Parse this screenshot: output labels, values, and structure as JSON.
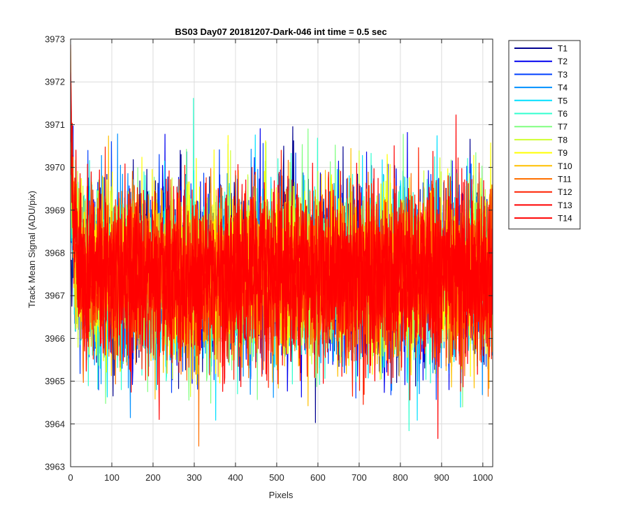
{
  "chart_data": {
    "type": "line",
    "title": "BS03 Day07 20181207-Dark-046 int time = 0.5 sec",
    "xlabel": "Pixels",
    "ylabel": "Track Mean Signal (ADU/pix)",
    "xlim": [
      0,
      1024
    ],
    "ylim": [
      3963,
      3973
    ],
    "xticks": [
      0,
      100,
      200,
      300,
      400,
      500,
      600,
      700,
      800,
      900,
      1000
    ],
    "yticks": [
      3963,
      3964,
      3965,
      3966,
      3967,
      3968,
      3969,
      3970,
      3971,
      3972,
      3973
    ],
    "grid": true,
    "legend_position": "outside-top-right",
    "n_points": 1024,
    "series": [
      {
        "name": "T1",
        "color": "#00008f",
        "mean": 3967.5,
        "std": 1.0,
        "start": 3968.3,
        "seed": 11
      },
      {
        "name": "T2",
        "color": "#0000ef",
        "mean": 3967.5,
        "std": 1.0,
        "start": 3971.5,
        "seed": 23
      },
      {
        "name": "T3",
        "color": "#0040ff",
        "mean": 3967.5,
        "std": 1.0,
        "start": 3969.5,
        "seed": 37
      },
      {
        "name": "T4",
        "color": "#0090ff",
        "mean": 3967.5,
        "std": 1.0,
        "start": 3969.0,
        "seed": 41
      },
      {
        "name": "T5",
        "color": "#00dfff",
        "mean": 3967.5,
        "std": 1.0,
        "start": 3970.0,
        "seed": 53
      },
      {
        "name": "T6",
        "color": "#30ffcf",
        "mean": 3967.5,
        "std": 1.0,
        "start": 3969.5,
        "seed": 67
      },
      {
        "name": "T7",
        "color": "#80ff80",
        "mean": 3967.5,
        "std": 1.0,
        "start": 3970.5,
        "seed": 71
      },
      {
        "name": "T8",
        "color": "#cfff30",
        "mean": 3967.5,
        "std": 1.0,
        "start": 3970.0,
        "seed": 83
      },
      {
        "name": "T9",
        "color": "#ffff00",
        "mean": 3967.5,
        "std": 1.0,
        "start": 3972.7,
        "seed": 97
      },
      {
        "name": "T10",
        "color": "#ffbf00",
        "mean": 3967.5,
        "std": 1.0,
        "start": 3971.0,
        "seed": 101
      },
      {
        "name": "T11",
        "color": "#ff7000",
        "mean": 3967.5,
        "std": 1.0,
        "start": 3970.5,
        "seed": 113
      },
      {
        "name": "T12",
        "color": "#ff2000",
        "mean": 3967.5,
        "std": 1.0,
        "start": 3972.2,
        "seed": 127
      },
      {
        "name": "T13",
        "color": "#ff0000",
        "mean": 3967.5,
        "std": 1.0,
        "start": 3971.5,
        "seed": 131
      },
      {
        "name": "T14",
        "color": "#ff0000",
        "mean": 3967.5,
        "std": 1.0,
        "start": 3971.2,
        "seed": 139
      }
    ]
  }
}
